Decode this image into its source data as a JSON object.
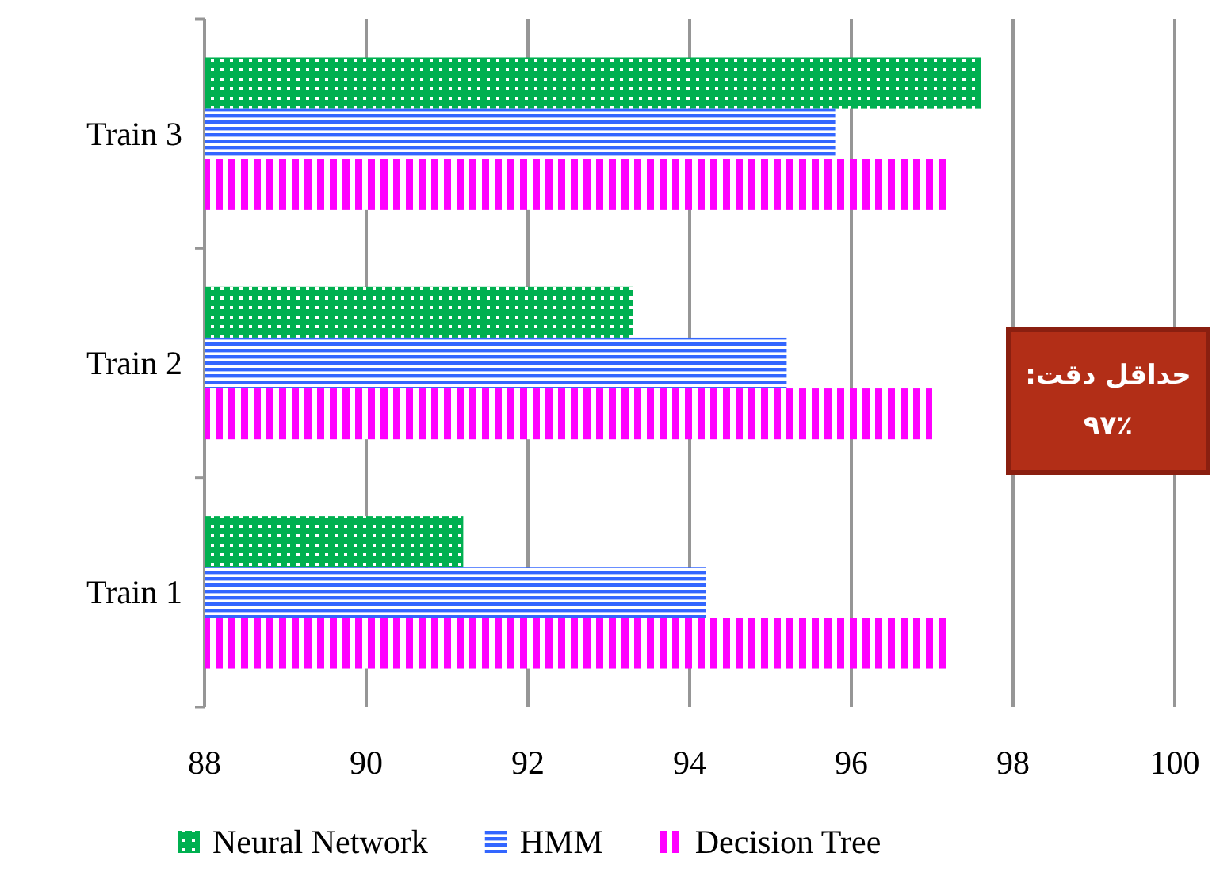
{
  "chart_data": {
    "type": "bar",
    "orientation": "horizontal",
    "categories": [
      "Train 3",
      "Train 2",
      "Train 1"
    ],
    "series": [
      {
        "name": "Neural Network",
        "color": "#00b050",
        "values": [
          97.6,
          93.3,
          91.2
        ]
      },
      {
        "name": "HMM",
        "color": "#3366ff",
        "values": [
          95.8,
          95.2,
          94.2
        ]
      },
      {
        "name": "Decision Tree",
        "color": "#ff00ff",
        "values": [
          97.2,
          97.0,
          97.2
        ]
      }
    ],
    "xlim": [
      88,
      100
    ],
    "xticks": [
      88,
      90,
      92,
      94,
      96,
      98,
      100
    ],
    "grid": "x",
    "legend": "bottom",
    "annotations": [
      "حداقل دقت:\n۹۷٪"
    ]
  }
}
